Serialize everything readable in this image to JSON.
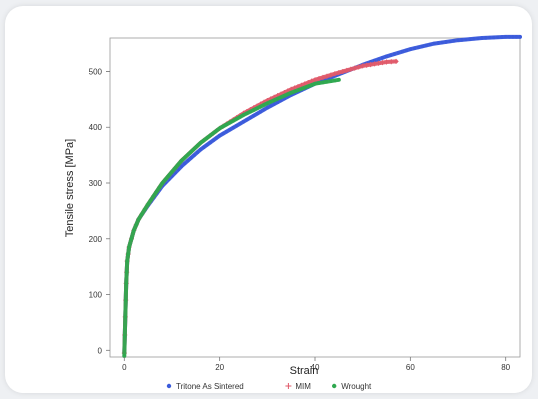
{
  "chart_data": {
    "type": "scatter",
    "xlabel": "Strain",
    "ylabel": "Tensile stress [MPa]",
    "xlim": [
      -3,
      83
    ],
    "ylim": [
      -12,
      560
    ],
    "xticks": [
      "0",
      "20",
      "40",
      "60",
      "80"
    ],
    "yticks": [
      "0",
      "100",
      "200",
      "300",
      "400",
      "500"
    ],
    "legend_position": "bottom",
    "series": [
      {
        "name": "Tritone As Sintered",
        "marker": "dot",
        "color": "#3b5bdb",
        "x": [
          0,
          0.2,
          0.4,
          0.6,
          1,
          2,
          3,
          5,
          8,
          12,
          16,
          20,
          25,
          30,
          35,
          40,
          45,
          50,
          55,
          60,
          65,
          70,
          75,
          80,
          83
        ],
        "y": [
          -5,
          60,
          120,
          160,
          185,
          215,
          235,
          260,
          295,
          330,
          360,
          385,
          410,
          435,
          458,
          478,
          495,
          512,
          527,
          540,
          550,
          556,
          560,
          562,
          562
        ]
      },
      {
        "name": "MIM",
        "marker": "plus",
        "color": "#e05a6a",
        "x": [
          0,
          0.2,
          0.4,
          0.6,
          1,
          2,
          3,
          5,
          8,
          12,
          16,
          20,
          25,
          30,
          35,
          40,
          45,
          50,
          55,
          57
        ],
        "y": [
          -5,
          60,
          120,
          160,
          185,
          215,
          235,
          262,
          300,
          340,
          372,
          398,
          425,
          448,
          468,
          485,
          498,
          510,
          517,
          518
        ]
      },
      {
        "name": "Wrought",
        "marker": "dot",
        "color": "#2fa84f",
        "x": [
          0,
          0.2,
          0.4,
          0.6,
          1,
          2,
          3,
          5,
          8,
          12,
          16,
          20,
          25,
          30,
          35,
          40,
          45
        ],
        "y": [
          -10,
          60,
          120,
          160,
          185,
          215,
          235,
          262,
          300,
          340,
          372,
          398,
          422,
          443,
          462,
          478,
          485
        ]
      }
    ]
  }
}
